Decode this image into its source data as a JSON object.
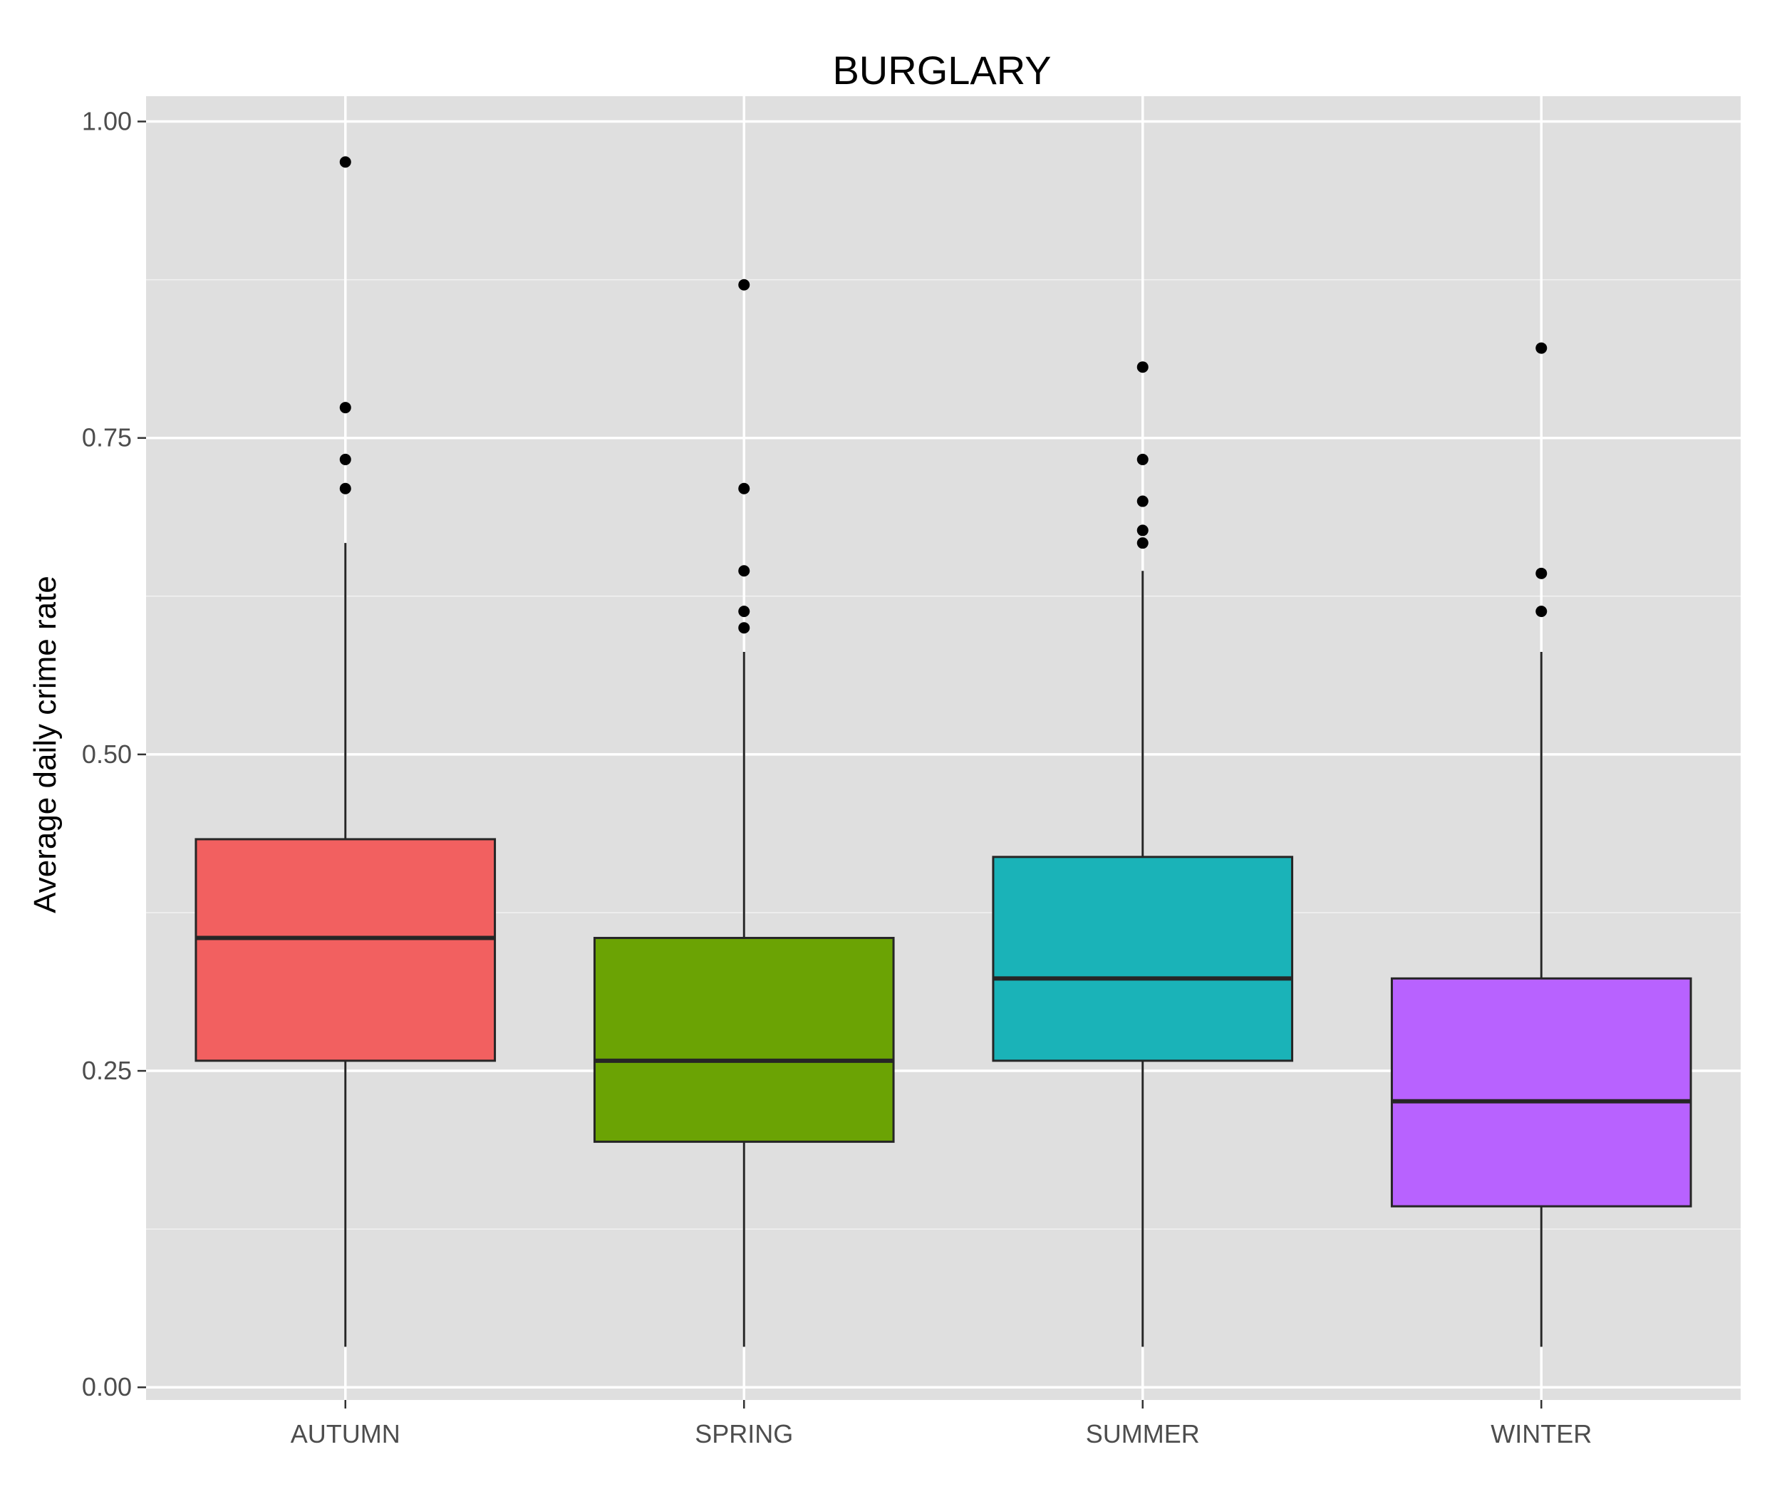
{
  "chart_data": {
    "type": "boxplot",
    "title": "BURGLARY",
    "xlabel": "",
    "ylabel": "Average daily crime rate",
    "categories": [
      "AUTUMN",
      "SPRING",
      "SUMMER",
      "WINTER"
    ],
    "ylim": [
      -0.01,
      1.02
    ],
    "yticks": [
      0.0,
      0.25,
      0.5,
      0.75,
      1.0
    ],
    "ytick_labels": [
      "0.00",
      "0.25",
      "0.50",
      "0.75",
      "1.00"
    ],
    "grid": true,
    "legend": "none",
    "boxes": [
      {
        "category": "AUTUMN",
        "fill": "#F26060",
        "whisker_low": 0.032,
        "q1": 0.258,
        "median": 0.355,
        "q3": 0.433,
        "whisker_high": 0.667,
        "outliers": [
          0.968,
          0.774,
          0.733,
          0.71
        ]
      },
      {
        "category": "SPRING",
        "fill": "#6BA304",
        "whisker_low": 0.032,
        "q1": 0.194,
        "median": 0.258,
        "q3": 0.355,
        "whisker_high": 0.581,
        "outliers": [
          0.871,
          0.71,
          0.645,
          0.613,
          0.6
        ]
      },
      {
        "category": "SUMMER",
        "fill": "#1AB3B8",
        "whisker_low": 0.032,
        "q1": 0.258,
        "median": 0.323,
        "q3": 0.419,
        "whisker_high": 0.645,
        "outliers": [
          0.806,
          0.733,
          0.7,
          0.677,
          0.667
        ]
      },
      {
        "category": "WINTER",
        "fill": "#B862FF",
        "whisker_low": 0.032,
        "q1": 0.143,
        "median": 0.226,
        "q3": 0.323,
        "whisker_high": 0.581,
        "outliers": [
          0.821,
          0.643,
          0.613
        ]
      }
    ]
  },
  "colors": {
    "panel_background": "#DFDFDF",
    "grid_line": "#FFFFFF",
    "box_outline": "#262626",
    "outlier": "#000000"
  }
}
